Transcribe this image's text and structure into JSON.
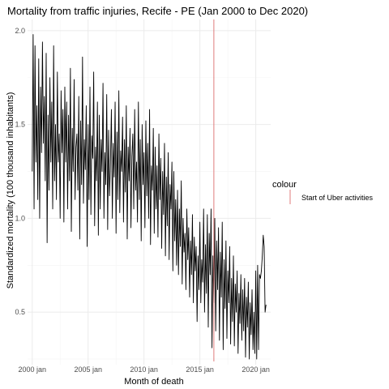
{
  "chart_data": {
    "type": "line",
    "title": "Mortality from traffic injuries, Recife - PE (Jan 2000 to Dec 2020)",
    "xlabel": "Month of death",
    "ylabel": "Standardized mortality (100 thousand inhabitants)",
    "x_ticks": [
      {
        "year": 2000,
        "label": "2000 jan"
      },
      {
        "year": 2005,
        "label": "2005 jan"
      },
      {
        "year": 2010,
        "label": "2010 jan"
      },
      {
        "year": 2015,
        "label": "2015 jan"
      },
      {
        "year": 2020,
        "label": "2020 jan"
      }
    ],
    "y_ticks": [
      0.5,
      1.0,
      1.5,
      2.0
    ],
    "y_tick_labels": [
      "0.5",
      "1.0",
      "1.5",
      "2.0"
    ],
    "xlim": [
      "1999-08",
      "2021-05"
    ],
    "ylim": [
      0.22,
      2.06
    ],
    "grid": true,
    "legend": {
      "title": "colour",
      "position": "right",
      "entries": [
        {
          "label": "Start of Uber activities",
          "color": "#e07b7b"
        }
      ]
    },
    "reference_line": {
      "x": "2016-04",
      "color": "#e07b7b"
    },
    "series": [
      {
        "color": "#000000",
        "x_start": "2000-01",
        "x_end": "2020-12",
        "values": [
          1.25,
          1.98,
          1.05,
          1.92,
          1.3,
          1.6,
          1.1,
          1.85,
          1.0,
          1.7,
          1.35,
          1.94,
          1.4,
          1.65,
          1.2,
          1.88,
          0.87,
          1.55,
          1.15,
          1.75,
          1.3,
          1.62,
          1.05,
          1.92,
          1.2,
          1.5,
          1.1,
          1.78,
          1.3,
          1.45,
          1.0,
          1.68,
          1.35,
          1.58,
          0.98,
          1.7,
          1.3,
          1.62,
          1.05,
          1.55,
          1.2,
          1.8,
          0.93,
          1.48,
          1.25,
          1.74,
          1.1,
          1.38,
          1.45,
          1.15,
          1.65,
          0.89,
          1.52,
          1.18,
          1.86,
          1.08,
          1.42,
          1.26,
          1.6,
          0.85,
          1.5,
          1.1,
          1.7,
          1.02,
          1.44,
          1.32,
          1.78,
          0.96,
          1.38,
          1.2,
          1.62,
          0.91,
          1.55,
          1.05,
          1.42,
          1.25,
          1.72,
          1.0,
          1.35,
          1.18,
          1.66,
          0.94,
          1.47,
          1.12,
          1.3,
          1.58,
          1.0,
          1.4,
          1.22,
          1.62,
          0.92,
          1.46,
          1.1,
          1.68,
          1.03,
          1.36,
          1.25,
          1.54,
          0.98,
          1.42,
          1.14,
          1.6,
          0.89,
          1.38,
          1.2,
          1.48,
          0.95,
          1.33,
          1.45,
          1.05,
          1.58,
          1.15,
          1.3,
          0.98,
          1.62,
          1.1,
          1.42,
          0.88,
          1.5,
          1.18,
          1.35,
          0.95,
          1.52,
          1.12,
          1.4,
          1.0,
          1.58,
          0.86,
          1.28,
          1.15,
          1.48,
          0.92,
          1.38,
          1.05,
          1.28,
          0.9,
          1.45,
          1.1,
          1.32,
          0.84,
          1.25,
          1.02,
          1.4,
          0.8,
          1.22,
          0.96,
          1.35,
          0.78,
          1.18,
          1.05,
          1.3,
          0.72,
          1.25,
          0.88,
          1.1,
          0.75,
          1.15,
          0.7,
          1.05,
          0.85,
          1.2,
          0.65,
          1.0,
          0.82,
          0.92,
          0.62,
          1.05,
          0.78,
          0.95,
          0.58,
          0.88,
          0.7,
          1.02,
          0.55,
          0.9,
          0.72,
          0.85,
          0.45,
          0.8,
          0.62,
          0.98,
          0.55,
          0.78,
          0.66,
          1.05,
          0.5,
          0.86,
          0.6,
          1.02,
          0.42,
          0.92,
          0.7,
          1.05,
          0.31,
          0.8,
          0.55,
          1.0,
          0.4,
          0.88,
          0.62,
          0.95,
          0.35,
          0.82,
          0.58,
          0.98,
          0.3,
          0.78,
          0.52,
          0.88,
          0.36,
          0.72,
          0.55,
          0.85,
          0.33,
          0.68,
          0.45,
          0.8,
          0.32,
          0.65,
          0.5,
          0.72,
          0.28,
          0.6,
          0.44,
          0.7,
          0.35,
          0.62,
          0.4,
          0.68,
          0.26,
          0.58,
          0.42,
          0.66,
          0.25,
          0.55,
          0.38,
          0.62,
          0.3,
          0.5,
          0.28,
          0.72,
          0.25,
          0.75,
          0.3,
          0.7,
          0.68,
          0.72,
          0.8,
          0.91,
          0.85,
          0.5,
          0.54
        ]
      }
    ]
  }
}
